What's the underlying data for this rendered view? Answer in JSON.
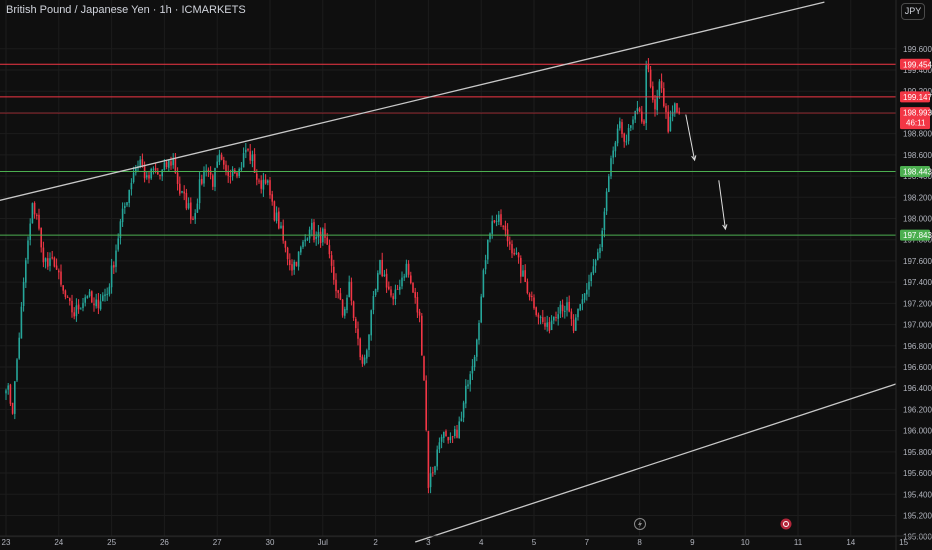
{
  "header": {
    "title": "British Pound / Japanese Yen · 1h · ICMARKETS",
    "currency": "JPY"
  },
  "price_labels": [
    {
      "price": 199.454,
      "text": "199.454",
      "color": "#f23645",
      "kind": "resistance"
    },
    {
      "price": 199.147,
      "text": "199.147",
      "color": "#f23645",
      "kind": "resistance"
    },
    {
      "price": 198.993,
      "text": "198.993",
      "sub": "46:11",
      "color": "#f23645",
      "kind": "current"
    },
    {
      "price": 198.443,
      "text": "198.443",
      "color": "#4caf50",
      "kind": "support"
    },
    {
      "price": 197.843,
      "text": "197.843",
      "color": "#4caf50",
      "kind": "support"
    }
  ],
  "colors": {
    "up": "#26a69a",
    "down": "#f23645",
    "trendline": "#c8c8c8",
    "background": "#0f0f0f",
    "grid": "#1c1c1c"
  },
  "icons": [
    "lightning-icon",
    "event-marker-icon"
  ],
  "chart_data": {
    "type": "candlestick",
    "y_axis": {
      "ylim": [
        194.95,
        200.05
      ],
      "ticks": [
        "199.600",
        "199.400",
        "199.200",
        "199.000",
        "198.800",
        "198.600",
        "198.400",
        "198.200",
        "198.000",
        "197.800",
        "197.600",
        "197.400",
        "197.200",
        "197.000",
        "196.800",
        "196.600",
        "196.400",
        "196.200",
        "196.000",
        "195.800",
        "195.600",
        "195.400",
        "195.200",
        "195.000"
      ]
    },
    "x_axis": {
      "ticks": [
        {
          "label": "23",
          "i": 0
        },
        {
          "label": "24",
          "i": 24
        },
        {
          "label": "25",
          "i": 48
        },
        {
          "label": "26",
          "i": 72
        },
        {
          "label": "27",
          "i": 96
        },
        {
          "label": "30",
          "i": 120
        },
        {
          "label": "Jul",
          "i": 144
        },
        {
          "label": "2",
          "i": 168
        },
        {
          "label": "3",
          "i": 192
        },
        {
          "label": "4",
          "i": 216
        },
        {
          "label": "5",
          "i": 240
        },
        {
          "label": "7",
          "i": 264
        },
        {
          "label": "8",
          "i": 288
        },
        {
          "label": "9",
          "i": 312
        },
        {
          "label": "10",
          "i": 336
        },
        {
          "label": "11",
          "i": 360
        },
        {
          "label": "14",
          "i": 384
        },
        {
          "label": "15",
          "i": 408
        }
      ]
    },
    "keypoints": [
      [
        0,
        196.45
      ],
      [
        3,
        196.2
      ],
      [
        6,
        196.9
      ],
      [
        9,
        197.6
      ],
      [
        12,
        198.1
      ],
      [
        14,
        198.05
      ],
      [
        16,
        197.7
      ],
      [
        19,
        197.55
      ],
      [
        22,
        197.6
      ],
      [
        25,
        197.35
      ],
      [
        28,
        197.2
      ],
      [
        31,
        197.1
      ],
      [
        34,
        197.2
      ],
      [
        37,
        197.3
      ],
      [
        40,
        197.15
      ],
      [
        43,
        197.25
      ],
      [
        46,
        197.3
      ],
      [
        49,
        197.6
      ],
      [
        52,
        197.95
      ],
      [
        55,
        198.2
      ],
      [
        58,
        198.45
      ],
      [
        61,
        198.55
      ],
      [
        64,
        198.35
      ],
      [
        67,
        198.45
      ],
      [
        70,
        198.4
      ],
      [
        73,
        198.5
      ],
      [
        76,
        198.55
      ],
      [
        79,
        198.25
      ],
      [
        82,
        198.15
      ],
      [
        85,
        198.0
      ],
      [
        88,
        198.3
      ],
      [
        91,
        198.5
      ],
      [
        94,
        198.35
      ],
      [
        97,
        198.55
      ],
      [
        100,
        198.4
      ],
      [
        103,
        198.5
      ],
      [
        106,
        198.45
      ],
      [
        109,
        198.65
      ],
      [
        112,
        198.55
      ],
      [
        115,
        198.3
      ],
      [
        118,
        198.4
      ],
      [
        121,
        198.1
      ],
      [
        124,
        197.95
      ],
      [
        127,
        197.7
      ],
      [
        130,
        197.55
      ],
      [
        133,
        197.65
      ],
      [
        136,
        197.8
      ],
      [
        138,
        197.95
      ],
      [
        141,
        197.8
      ],
      [
        144,
        197.85
      ],
      [
        147,
        197.6
      ],
      [
        150,
        197.35
      ],
      [
        153,
        197.1
      ],
      [
        156,
        197.35
      ],
      [
        159,
        196.95
      ],
      [
        162,
        196.6
      ],
      [
        164,
        196.8
      ],
      [
        167,
        197.2
      ],
      [
        170,
        197.55
      ],
      [
        173,
        197.4
      ],
      [
        176,
        197.2
      ],
      [
        179,
        197.4
      ],
      [
        182,
        197.55
      ],
      [
        185,
        197.3
      ],
      [
        188,
        197.05
      ],
      [
        190,
        196.5
      ],
      [
        192,
        195.5
      ],
      [
        195,
        195.7
      ],
      [
        198,
        196.0
      ],
      [
        201,
        195.85
      ],
      [
        204,
        195.95
      ],
      [
        207,
        196.1
      ],
      [
        210,
        196.5
      ],
      [
        213,
        196.75
      ],
      [
        216,
        197.25
      ],
      [
        219,
        197.85
      ],
      [
        222,
        198.0
      ],
      [
        225,
        197.95
      ],
      [
        228,
        197.8
      ],
      [
        231,
        197.7
      ],
      [
        234,
        197.5
      ],
      [
        237,
        197.35
      ],
      [
        240,
        197.2
      ],
      [
        243,
        197.05
      ],
      [
        246,
        196.95
      ],
      [
        249,
        197.1
      ],
      [
        252,
        197.2
      ],
      [
        255,
        197.15
      ],
      [
        258,
        196.95
      ],
      [
        261,
        197.15
      ],
      [
        264,
        197.35
      ],
      [
        267,
        197.55
      ],
      [
        270,
        197.7
      ],
      [
        273,
        198.2
      ],
      [
        276,
        198.65
      ],
      [
        279,
        198.85
      ],
      [
        282,
        198.75
      ],
      [
        285,
        198.9
      ],
      [
        288,
        199.05
      ],
      [
        290,
        198.85
      ],
      [
        291,
        199.5
      ],
      [
        293,
        199.2
      ],
      [
        295,
        199.0
      ],
      [
        297,
        199.3
      ],
      [
        299,
        199.05
      ],
      [
        301,
        198.85
      ],
      [
        304,
        199.1
      ],
      [
        306,
        198.99
      ]
    ],
    "trendlines": [
      {
        "points": [
          [
            -13,
            198.12
          ],
          [
            372,
            200.04
          ]
        ],
        "color": "#c8c8c8"
      },
      {
        "points": [
          [
            186,
            194.95
          ],
          [
            406,
            196.45
          ]
        ],
        "color": "#c8c8c8"
      }
    ],
    "horizontal_levels": [
      199.454,
      199.147,
      198.993,
      198.443,
      197.843
    ],
    "projection_arrows": [
      {
        "from": [
          309,
          198.98
        ],
        "to": [
          313,
          198.55
        ]
      },
      {
        "from": [
          324,
          198.36
        ],
        "to": [
          327,
          197.9
        ]
      }
    ]
  }
}
